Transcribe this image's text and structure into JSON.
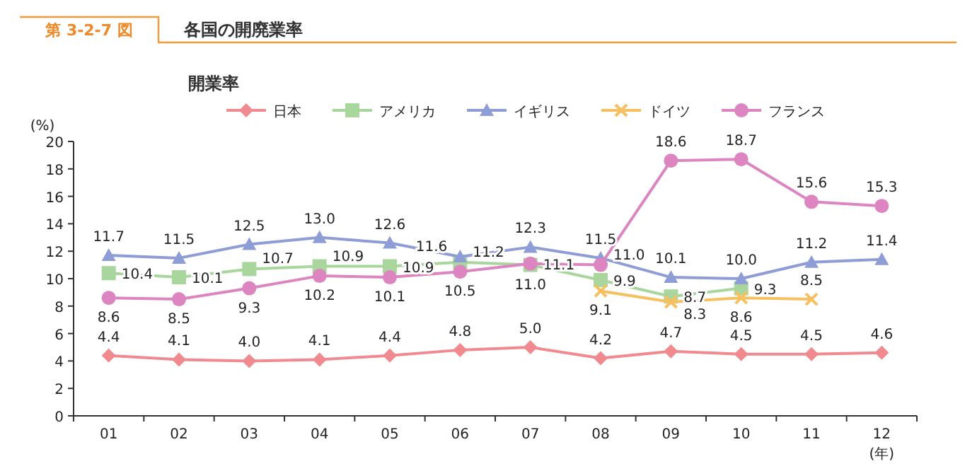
{
  "chart_data": {
    "type": "line",
    "title": "各国の開廃業率",
    "subtitle": "開業率",
    "annotations": [
      "第 3-2-7 図"
    ],
    "xlabel": "(年)",
    "ylabel": "(%)",
    "categories": [
      "01",
      "02",
      "03",
      "04",
      "05",
      "06",
      "07",
      "08",
      "09",
      "10",
      "11",
      "12"
    ],
    "ylim": [
      0,
      20
    ],
    "yticks": [
      0,
      2,
      4,
      6,
      8,
      10,
      12,
      14,
      16,
      18,
      20
    ],
    "grid": false,
    "legend": "top",
    "series": [
      {
        "name": "日本",
        "color": "#f08a8f",
        "marker": "diamond",
        "values": [
          4.4,
          4.1,
          4.0,
          4.1,
          4.4,
          4.8,
          5.0,
          4.2,
          4.7,
          4.5,
          4.5,
          4.6
        ],
        "value_labels": [
          "4.4",
          "4.1",
          "4.0",
          "4.1",
          "4.4",
          "4.8",
          "5.0",
          "4.2",
          "4.7",
          "4.5",
          "4.5",
          "4.6"
        ]
      },
      {
        "name": "アメリカ",
        "color": "#a9d69c",
        "marker": "square",
        "values": [
          10.4,
          10.1,
          10.7,
          10.9,
          10.9,
          11.2,
          11.0,
          9.9,
          8.7,
          9.3,
          null,
          null
        ],
        "value_labels": [
          "10.4",
          "10.1",
          "10.7",
          "10.9",
          "10.9",
          "11.2",
          "11.0",
          "9.9",
          "8.7",
          "9.3",
          null,
          null
        ]
      },
      {
        "name": "イギリス",
        "color": "#8f9dd6",
        "marker": "triangle",
        "values": [
          11.7,
          11.5,
          12.5,
          13.0,
          12.6,
          11.6,
          12.3,
          11.5,
          10.1,
          10.0,
          11.2,
          11.4
        ],
        "value_labels": [
          "11.7",
          "11.5",
          "12.5",
          "13.0",
          "12.6",
          "11.6",
          "12.3",
          "11.5",
          "10.1",
          "10.0",
          "11.2",
          "11.4"
        ]
      },
      {
        "name": "ドイツ",
        "color": "#f6c060",
        "marker": "cross",
        "values": [
          null,
          null,
          null,
          null,
          null,
          null,
          null,
          9.1,
          8.3,
          8.6,
          8.5,
          null
        ],
        "value_labels": [
          null,
          null,
          null,
          null,
          null,
          null,
          null,
          "9.1",
          "8.3",
          "8.6",
          "8.5",
          null
        ]
      },
      {
        "name": "フランス",
        "color": "#dc85c0",
        "marker": "circle",
        "values": [
          8.6,
          8.5,
          9.3,
          10.2,
          10.1,
          10.5,
          11.1,
          11.0,
          18.6,
          18.7,
          15.6,
          15.3
        ],
        "value_labels": [
          "8.6",
          "8.5",
          "9.3",
          "10.2",
          "10.1",
          "10.5",
          "11.1",
          "11.0",
          "18.6",
          "18.7",
          "15.6",
          "15.3"
        ]
      }
    ]
  }
}
